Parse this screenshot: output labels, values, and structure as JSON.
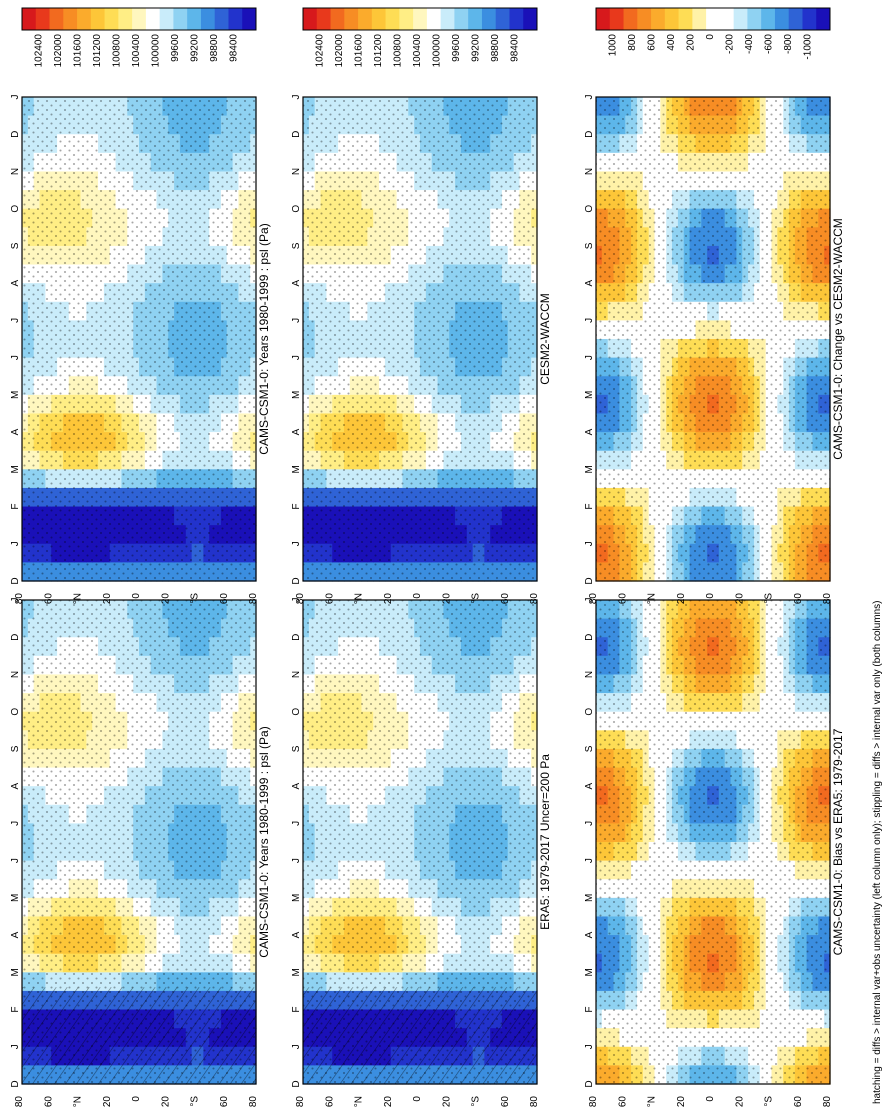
{
  "footnote": "hatching = diffs > internal var+obs uncertainty (left column only); stippling = diffs > internal var only (both columns)",
  "abs_colorbar": {
    "labels": [
      "102400",
      "102000",
      "101600",
      "101200",
      "100800",
      "100400",
      "100000",
      "99600",
      "99200",
      "98800",
      "98400"
    ],
    "colors": [
      "#d7191c",
      "#e8391c",
      "#f26a1f",
      "#f78d24",
      "#fbab2c",
      "#fdc638",
      "#fedd55",
      "#ffee85",
      "#fff7bf",
      "#ffffff",
      "#c9ecfa",
      "#8fd2f2",
      "#5db6ea",
      "#3b8ee0",
      "#2f63d6",
      "#2233cc",
      "#1a10b8"
    ]
  },
  "diff_colorbar": {
    "labels": [
      "1000",
      "800",
      "600",
      "400",
      "200",
      "0",
      "-200",
      "-400",
      "-600",
      "-800",
      "-1000"
    ],
    "colors": [
      "#d7191c",
      "#e8391c",
      "#f26a1f",
      "#f78d24",
      "#fbab2c",
      "#fdc638",
      "#fedd55",
      "#fff2a8",
      "#ffffff",
      "#ffffff",
      "#c9ecfa",
      "#8fd2f2",
      "#5db6ea",
      "#3b8ee0",
      "#2f63d6",
      "#2233cc",
      "#1a10b8"
    ]
  },
  "month_labels": [
    "D",
    "J",
    "F",
    "M",
    "A",
    "M",
    "J",
    "J",
    "A",
    "S",
    "O",
    "N",
    "D",
    "J"
  ],
  "lat_labels": [
    "80",
    "60",
    "°N",
    "20",
    "0",
    "20",
    "°S",
    "60",
    "80"
  ],
  "chart_data": [
    {
      "type": "heatmap",
      "title": "CAMS-CSM1-0: Years 1980-1999 : psl (Pa)",
      "xlabel": "",
      "ylabel": "",
      "units": "Pa",
      "x_range": [
        "D",
        "J"
      ],
      "y_range": [
        "80°N",
        "80°S"
      ],
      "kind": "model"
    },
    {
      "type": "heatmap",
      "title": "CAMS-CSM1-0: Years 1980-1999 : psl (Pa)",
      "xlabel": "",
      "ylabel": "",
      "units": "Pa",
      "x_range": [
        "D",
        "J"
      ],
      "y_range": [
        "80°N",
        "80°S"
      ],
      "kind": "model"
    },
    {
      "type": "heatmap",
      "title": "ERA5: 1979-2017 Uncer=200 Pa",
      "xlabel": "",
      "ylabel": "",
      "units": "Pa",
      "x_range": [
        "D",
        "J"
      ],
      "y_range": [
        "80°N",
        "80°S"
      ],
      "kind": "obs"
    },
    {
      "type": "heatmap",
      "title": "CESM2-WACCM",
      "xlabel": "",
      "ylabel": "",
      "units": "Pa",
      "x_range": [
        "D",
        "J"
      ],
      "y_range": [
        "80°N",
        "80°S"
      ],
      "kind": "model"
    },
    {
      "type": "heatmap",
      "title": "CAMS-CSM1-0: Bias vs ERA5: 1979-2017",
      "xlabel": "",
      "ylabel": "",
      "units": "Pa",
      "x_range": [
        "D",
        "J"
      ],
      "y_range": [
        "80°N",
        "80°S"
      ],
      "kind": "bias"
    },
    {
      "type": "heatmap",
      "title": "CAMS-CSM1-0: Change vs CESM2-WACCM",
      "xlabel": "",
      "ylabel": "",
      "units": "Pa",
      "x_range": [
        "D",
        "J"
      ],
      "y_range": [
        "80°N",
        "80°S"
      ],
      "kind": "change"
    }
  ]
}
